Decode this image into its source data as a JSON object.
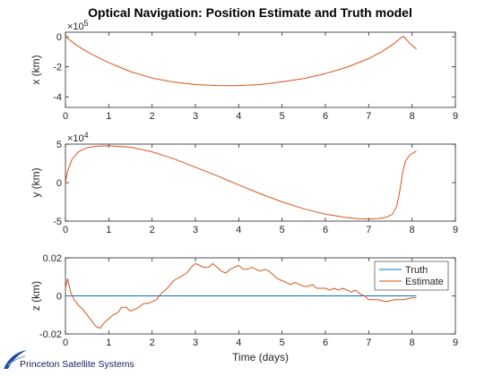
{
  "title": "Optical Navigation: Position Estimate and Truth model",
  "logo": {
    "text": "Princeton Satellite Systems"
  },
  "colors": {
    "truth": "#0072BD",
    "estimate": "#D95319",
    "axis": "#262626"
  },
  "chart_data": [
    {
      "type": "line",
      "ylabel": "x (km)",
      "exponent_label": "×10^5",
      "exponent_base": "×10",
      "exponent_power": "5",
      "xlim": [
        0,
        9
      ],
      "ylim": [
        -4.7,
        0.3
      ],
      "xticks": [
        0,
        1,
        2,
        3,
        4,
        5,
        6,
        7,
        8,
        9
      ],
      "yticks": [
        {
          "v": 0,
          "label": "0"
        },
        {
          "v": -2,
          "label": "-2"
        },
        {
          "v": -4,
          "label": "-4"
        }
      ],
      "series": [
        {
          "color": "#D95319",
          "points": [
            [
              0,
              0
            ],
            [
              0.25,
              -0.55
            ],
            [
              0.5,
              -1.0
            ],
            [
              0.75,
              -1.38
            ],
            [
              1.0,
              -1.72
            ],
            [
              1.5,
              -2.32
            ],
            [
              2.0,
              -2.75
            ],
            [
              2.5,
              -3.02
            ],
            [
              3.0,
              -3.18
            ],
            [
              3.5,
              -3.25
            ],
            [
              3.9,
              -3.26
            ],
            [
              4.5,
              -3.18
            ],
            [
              5.0,
              -3.0
            ],
            [
              5.5,
              -2.78
            ],
            [
              6.0,
              -2.45
            ],
            [
              6.5,
              -2.02
            ],
            [
              7.0,
              -1.45
            ],
            [
              7.3,
              -1.0
            ],
            [
              7.6,
              -0.42
            ],
            [
              7.75,
              -0.05
            ],
            [
              7.8,
              0.03
            ],
            [
              7.85,
              -0.12
            ],
            [
              7.95,
              -0.45
            ],
            [
              8.1,
              -0.82
            ]
          ]
        }
      ]
    },
    {
      "type": "line",
      "ylabel": "y (km)",
      "exponent_label": "×10^4",
      "exponent_base": "×10",
      "exponent_power": "4",
      "xlim": [
        0,
        9
      ],
      "ylim": [
        -5,
        5
      ],
      "xticks": [
        0,
        1,
        2,
        3,
        4,
        5,
        6,
        7,
        8,
        9
      ],
      "yticks": [
        {
          "v": 5,
          "label": "5"
        },
        {
          "v": 0,
          "label": "0"
        },
        {
          "v": -5,
          "label": "-5"
        }
      ],
      "series": [
        {
          "color": "#D95319",
          "points": [
            [
              0,
              0
            ],
            [
              0.05,
              1.5
            ],
            [
              0.15,
              3.0
            ],
            [
              0.3,
              4.0
            ],
            [
              0.5,
              4.55
            ],
            [
              0.75,
              4.75
            ],
            [
              1.0,
              4.78
            ],
            [
              1.5,
              4.6
            ],
            [
              2.0,
              4.0
            ],
            [
              2.5,
              3.1
            ],
            [
              3.0,
              2.0
            ],
            [
              3.5,
              0.9
            ],
            [
              4.0,
              -0.3
            ],
            [
              4.5,
              -1.45
            ],
            [
              5.0,
              -2.5
            ],
            [
              5.5,
              -3.4
            ],
            [
              6.0,
              -4.1
            ],
            [
              6.5,
              -4.55
            ],
            [
              6.8,
              -4.7
            ],
            [
              7.0,
              -4.72
            ],
            [
              7.2,
              -4.68
            ],
            [
              7.4,
              -4.5
            ],
            [
              7.55,
              -4.1
            ],
            [
              7.65,
              -3.0
            ],
            [
              7.72,
              -1.0
            ],
            [
              7.78,
              1.2
            ],
            [
              7.85,
              2.8
            ],
            [
              7.95,
              3.6
            ],
            [
              8.1,
              4.1
            ]
          ]
        }
      ]
    },
    {
      "type": "line",
      "ylabel": "z (km)",
      "xlabel": "Time (days)",
      "xlim": [
        0,
        9
      ],
      "ylim": [
        -0.02,
        0.02
      ],
      "xticks": [
        0,
        1,
        2,
        3,
        4,
        5,
        6,
        7,
        8,
        9
      ],
      "yticks": [
        {
          "v": 0.02,
          "label": "0.02"
        },
        {
          "v": 0,
          "label": "0"
        },
        {
          "v": -0.02,
          "label": "-0.02"
        }
      ],
      "legend": {
        "position": "top-right",
        "entries": [
          "Truth",
          "Estimate"
        ]
      },
      "series": [
        {
          "name": "Truth",
          "color": "#0072BD",
          "points": [
            [
              0,
              0
            ],
            [
              8.1,
              0
            ]
          ]
        },
        {
          "name": "Estimate",
          "color": "#D95319",
          "points": [
            [
              0,
              0.004
            ],
            [
              0.05,
              0.009
            ],
            [
              0.12,
              0.002
            ],
            [
              0.2,
              -0.002
            ],
            [
              0.3,
              -0.005
            ],
            [
              0.4,
              -0.007
            ],
            [
              0.5,
              -0.01
            ],
            [
              0.6,
              -0.013
            ],
            [
              0.7,
              -0.016
            ],
            [
              0.8,
              -0.017
            ],
            [
              0.9,
              -0.014
            ],
            [
              1.0,
              -0.012
            ],
            [
              1.1,
              -0.01
            ],
            [
              1.2,
              -0.009
            ],
            [
              1.3,
              -0.006
            ],
            [
              1.4,
              -0.006
            ],
            [
              1.5,
              -0.008
            ],
            [
              1.6,
              -0.007
            ],
            [
              1.7,
              -0.006
            ],
            [
              1.8,
              -0.004
            ],
            [
              1.9,
              -0.004
            ],
            [
              2.0,
              -0.003
            ],
            [
              2.1,
              -0.002
            ],
            [
              2.2,
              0.001
            ],
            [
              2.35,
              0.004
            ],
            [
              2.5,
              0.008
            ],
            [
              2.65,
              0.01
            ],
            [
              2.8,
              0.012
            ],
            [
              2.9,
              0.015
            ],
            [
              3.0,
              0.017
            ],
            [
              3.1,
              0.016
            ],
            [
              3.2,
              0.015
            ],
            [
              3.3,
              0.015
            ],
            [
              3.4,
              0.017
            ],
            [
              3.5,
              0.015
            ],
            [
              3.6,
              0.013
            ],
            [
              3.7,
              0.012
            ],
            [
              3.8,
              0.014
            ],
            [
              3.9,
              0.015
            ],
            [
              4.0,
              0.016
            ],
            [
              4.1,
              0.014
            ],
            [
              4.2,
              0.014
            ],
            [
              4.3,
              0.015
            ],
            [
              4.4,
              0.014
            ],
            [
              4.5,
              0.013
            ],
            [
              4.6,
              0.014
            ],
            [
              4.7,
              0.013
            ],
            [
              4.8,
              0.011
            ],
            [
              4.9,
              0.009
            ],
            [
              5.0,
              0.008
            ],
            [
              5.1,
              0.007
            ],
            [
              5.2,
              0.006
            ],
            [
              5.3,
              0.007
            ],
            [
              5.4,
              0.006
            ],
            [
              5.5,
              0.005
            ],
            [
              5.6,
              0.005
            ],
            [
              5.7,
              0.006
            ],
            [
              5.8,
              0.004
            ],
            [
              5.9,
              0.004
            ],
            [
              6.0,
              0.004
            ],
            [
              6.1,
              0.003
            ],
            [
              6.2,
              0.004
            ],
            [
              6.3,
              0.003
            ],
            [
              6.4,
              0.004
            ],
            [
              6.5,
              0.003
            ],
            [
              6.6,
              0.002
            ],
            [
              6.7,
              0.003
            ],
            [
              6.8,
              0.001
            ],
            [
              6.9,
              0.0
            ],
            [
              7.0,
              -0.002
            ],
            [
              7.2,
              -0.002
            ],
            [
              7.4,
              -0.003
            ],
            [
              7.6,
              -0.002
            ],
            [
              7.8,
              -0.002
            ],
            [
              8.0,
              -0.001
            ],
            [
              8.1,
              -0.001
            ]
          ]
        }
      ]
    }
  ]
}
